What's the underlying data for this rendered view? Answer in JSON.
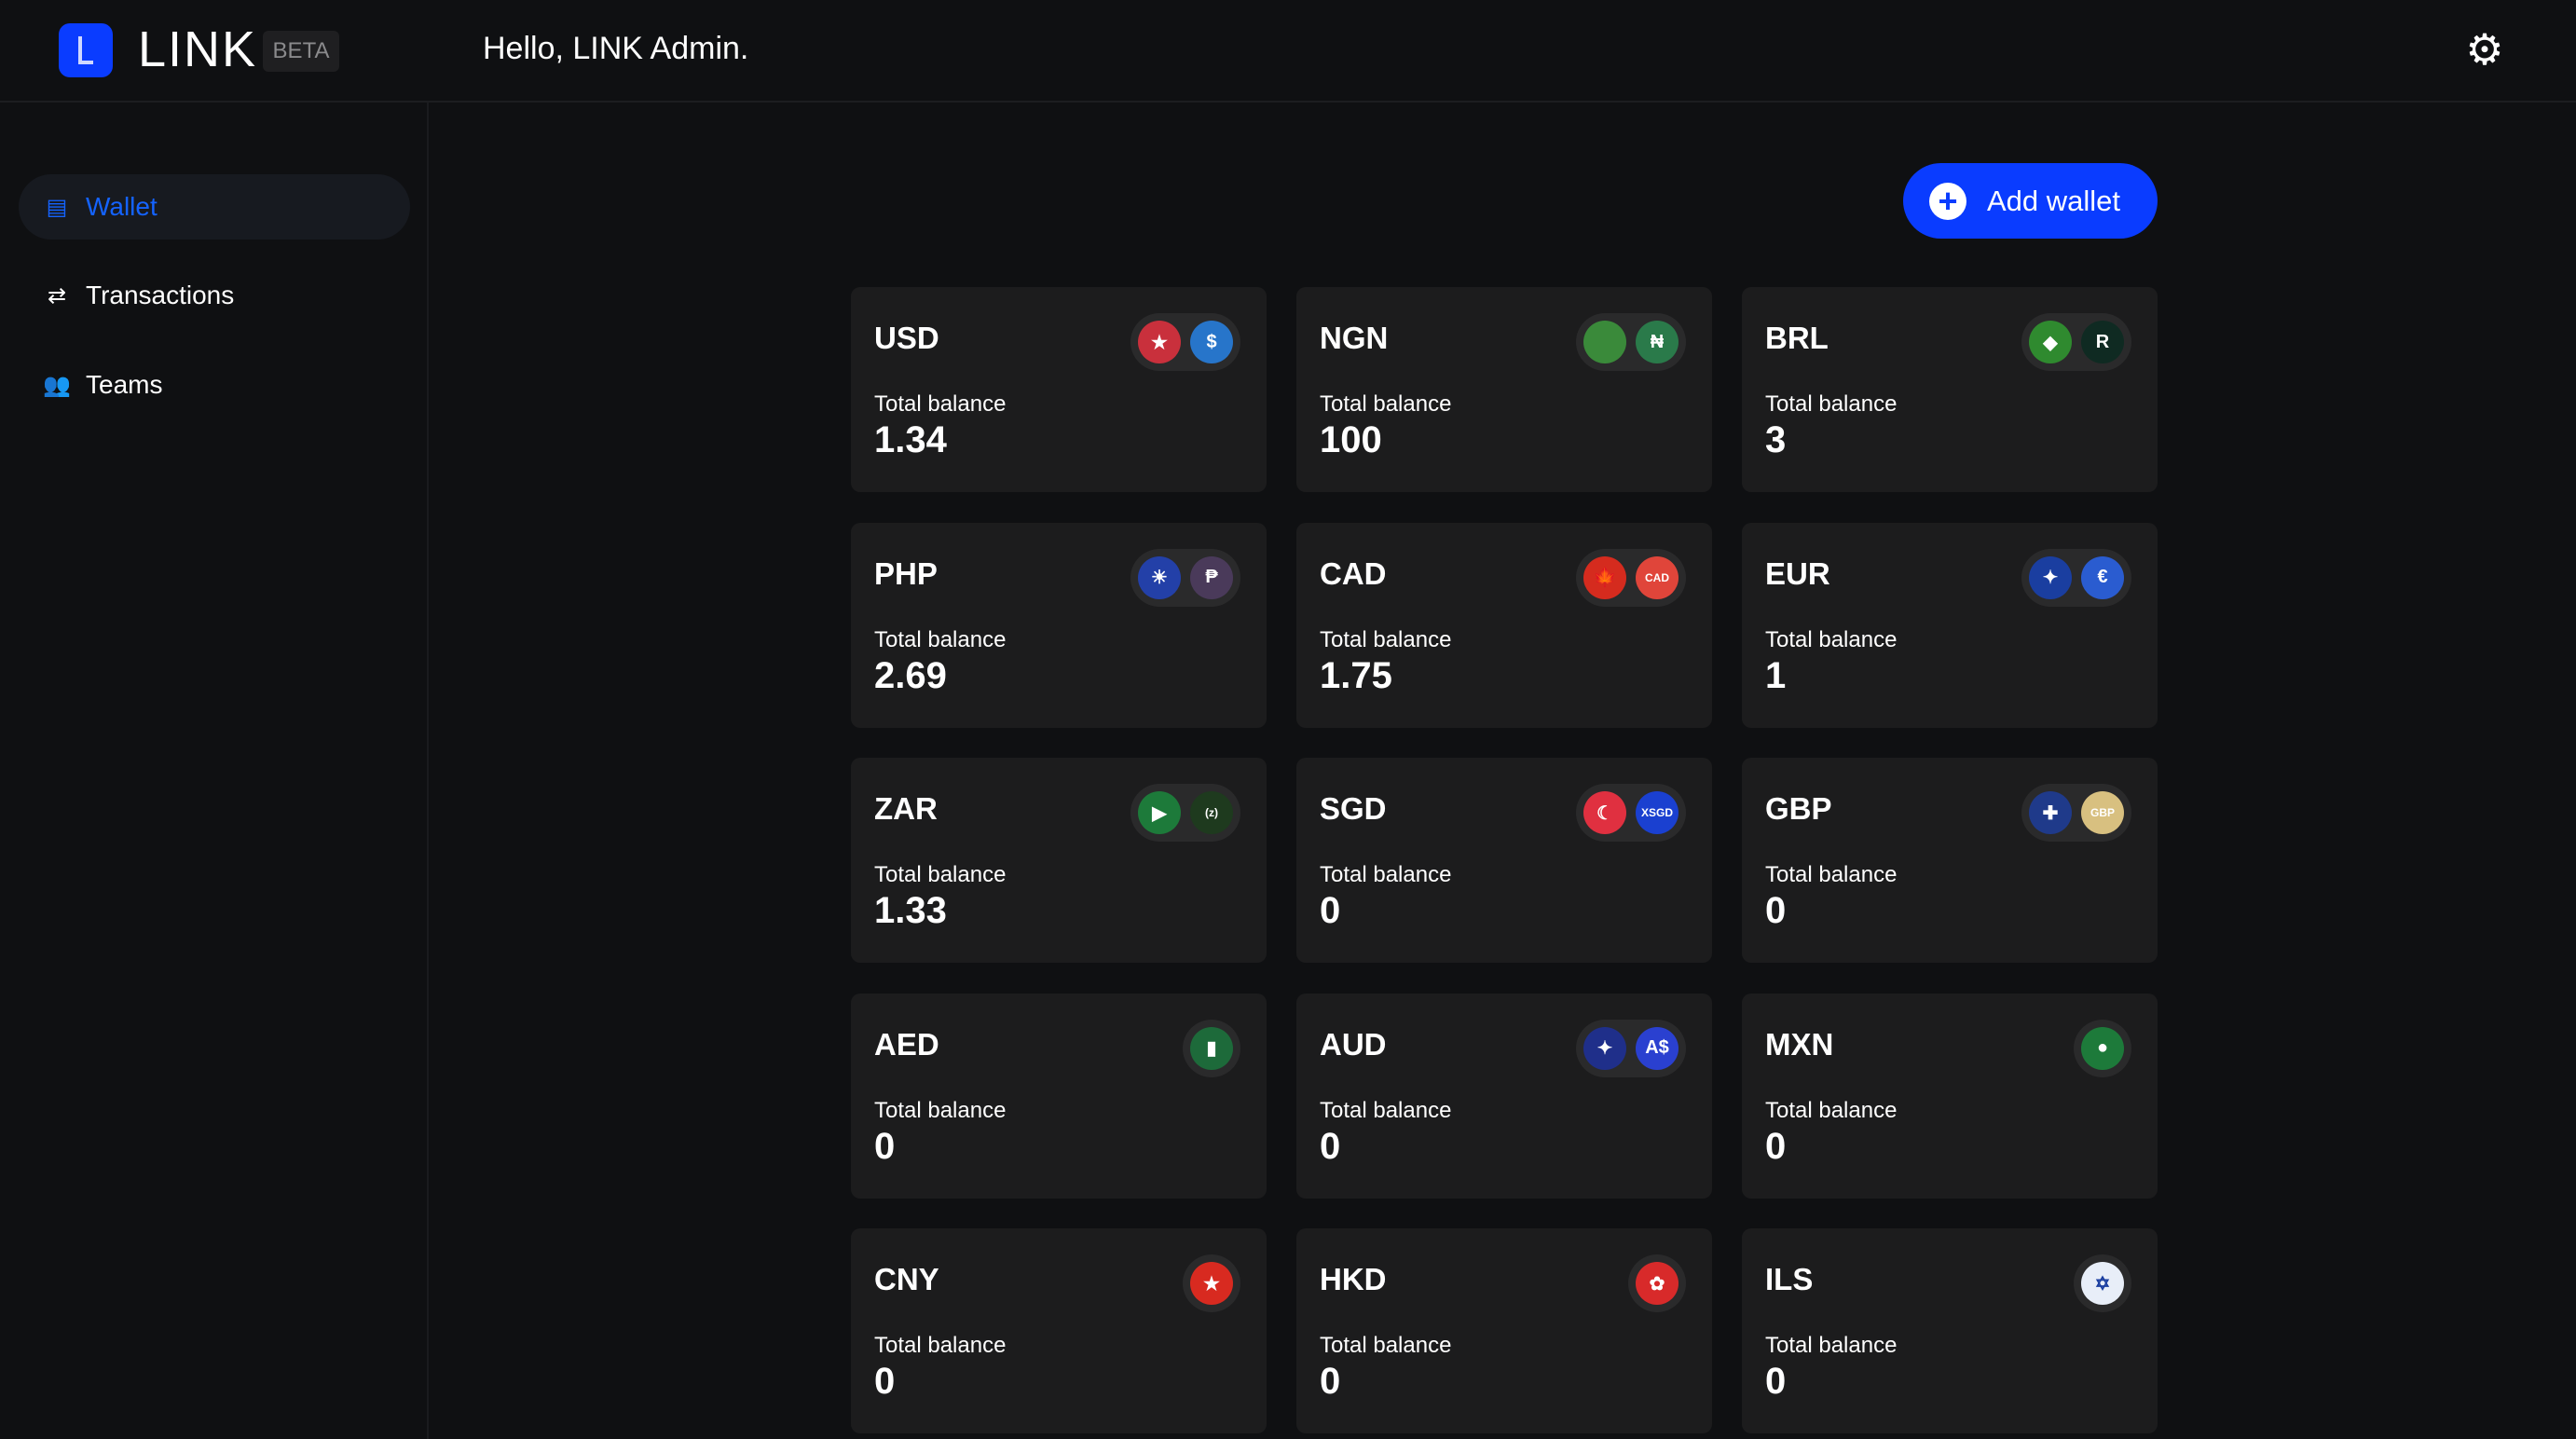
{
  "header": {
    "brand": "LINK",
    "badge": "BETA",
    "greeting": "Hello, LINK Admin."
  },
  "sidebar": {
    "items": [
      {
        "label": "Wallet",
        "icon": "wallet-icon"
      },
      {
        "label": "Transactions",
        "icon": "arrows-icon"
      },
      {
        "label": "Teams",
        "icon": "people-icon"
      }
    ]
  },
  "actions": {
    "add_wallet": "Add wallet"
  },
  "balance_label": "Total balance",
  "wallets": [
    {
      "code": "USD",
      "balance": "1.34",
      "coins": [
        {
          "glyph": "★",
          "color": "#c9303c"
        },
        {
          "glyph": "$",
          "color": "#2775ca"
        }
      ]
    },
    {
      "code": "NGN",
      "balance": "100",
      "coins": [
        {
          "glyph": "",
          "color": "#3a8a3a"
        },
        {
          "glyph": "₦",
          "color": "#2a7a4a"
        }
      ]
    },
    {
      "code": "BRL",
      "balance": "3",
      "coins": [
        {
          "glyph": "◆",
          "color": "#2f8a2f"
        },
        {
          "glyph": "R",
          "color": "#0f2a22"
        }
      ]
    },
    {
      "code": "PHP",
      "balance": "2.69",
      "coins": [
        {
          "glyph": "☀",
          "color": "#2340a8"
        },
        {
          "glyph": "₱",
          "color": "#4a3a5a"
        }
      ]
    },
    {
      "code": "CAD",
      "balance": "1.75",
      "coins": [
        {
          "glyph": "🍁",
          "color": "#d52b1e"
        },
        {
          "glyph": "CAD",
          "color": "#e0453a"
        }
      ]
    },
    {
      "code": "EUR",
      "balance": "1",
      "coins": [
        {
          "glyph": "✦",
          "color": "#1a3ea0"
        },
        {
          "glyph": "€",
          "color": "#2a5cd0"
        }
      ]
    },
    {
      "code": "ZAR",
      "balance": "1.33",
      "coins": [
        {
          "glyph": "▶",
          "color": "#1d7a3a"
        },
        {
          "glyph": "(z)",
          "color": "#1e3a1e"
        }
      ]
    },
    {
      "code": "SGD",
      "balance": "0",
      "coins": [
        {
          "glyph": "☾",
          "color": "#e03040"
        },
        {
          "glyph": "XSGD",
          "color": "#1a40d0"
        }
      ]
    },
    {
      "code": "GBP",
      "balance": "0",
      "coins": [
        {
          "glyph": "✚",
          "color": "#1f3a8a"
        },
        {
          "glyph": "GBP",
          "color": "#d8c080"
        }
      ]
    },
    {
      "code": "AED",
      "balance": "0",
      "coins": [
        {
          "glyph": "▮",
          "color": "#1d6a3a"
        }
      ]
    },
    {
      "code": "AUD",
      "balance": "0",
      "coins": [
        {
          "glyph": "✦",
          "color": "#1f2f8a"
        },
        {
          "glyph": "A$",
          "color": "#2a40d0"
        }
      ]
    },
    {
      "code": "MXN",
      "balance": "0",
      "coins": [
        {
          "glyph": "●",
          "color": "#1d7a3a"
        }
      ]
    },
    {
      "code": "CNY",
      "balance": "0",
      "coins": [
        {
          "glyph": "★",
          "color": "#d82a20"
        }
      ]
    },
    {
      "code": "HKD",
      "balance": "0",
      "coins": [
        {
          "glyph": "✿",
          "color": "#d82a2a"
        }
      ]
    },
    {
      "code": "ILS",
      "balance": "0",
      "coins": [
        {
          "glyph": "✡",
          "color": "#e8eef8"
        }
      ]
    }
  ]
}
